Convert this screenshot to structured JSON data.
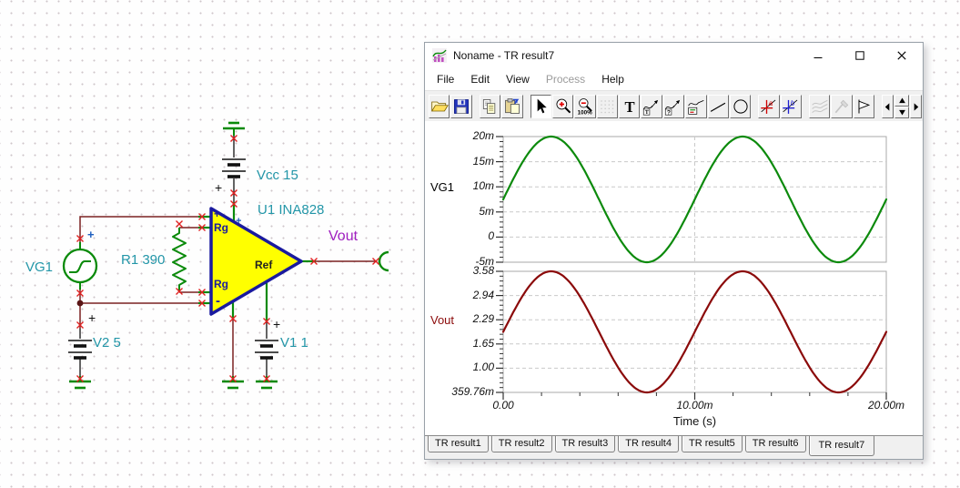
{
  "schematic": {
    "labels": {
      "vg1": "VG1",
      "r1": "R1 390",
      "v2": "V2 5",
      "vcc": "Vcc 15",
      "u1": "U1 INA828",
      "v1": "V1 1",
      "vout": "Vout"
    },
    "pins": {
      "plus": "+",
      "minus": "-",
      "rg": "Rg",
      "ref": "Ref"
    },
    "colors": {
      "label": "#2396a8",
      "vout_label": "#a020c0",
      "wire": "#7a2020",
      "component_green": "#0a8a0a",
      "opamp_fill": "#ffff00",
      "opamp_border": "#1a1a9e",
      "x_mark": "#e02020"
    }
  },
  "window": {
    "title": "Noname - TR result7",
    "controls": [
      "minimize",
      "maximize",
      "close"
    ],
    "menu": [
      {
        "label": "File"
      },
      {
        "label": "Edit"
      },
      {
        "label": "View"
      },
      {
        "label": "Process",
        "disabled": true
      },
      {
        "label": "Help"
      }
    ],
    "toolbar": [
      {
        "icon": "open"
      },
      {
        "icon": "save"
      },
      {
        "gap": true
      },
      {
        "icon": "copy"
      },
      {
        "icon": "paste"
      },
      {
        "gap": true
      },
      {
        "icon": "cursor-arrow",
        "pressed": true
      },
      {
        "icon": "zoom-in"
      },
      {
        "icon": "zoom-100"
      },
      {
        "icon": "grid",
        "disabled": true
      },
      {
        "icon": "text"
      },
      {
        "icon": "curve-label"
      },
      {
        "icon": "curve-query"
      },
      {
        "icon": "curve-legend"
      },
      {
        "icon": "line"
      },
      {
        "icon": "ellipse"
      },
      {
        "gap": true
      },
      {
        "icon": "cursor-a"
      },
      {
        "icon": "cursor-b"
      },
      {
        "gap": true
      },
      {
        "icon": "smooth",
        "disabled": true
      },
      {
        "icon": "picker",
        "disabled": true
      },
      {
        "icon": "flag"
      },
      {
        "gap": true
      },
      {
        "icon": "nav-left",
        "narrow": true
      },
      {
        "icon": "nav-spin",
        "spin": true
      },
      {
        "icon": "nav-right",
        "narrow": true
      }
    ]
  },
  "chart_data": [
    {
      "type": "line",
      "name": "VG1",
      "name_color": "#000000",
      "trace_color": "#0c8a0c",
      "y_tick_labels": [
        "20m",
        "15m",
        "10m",
        "5m",
        "0",
        "-5m"
      ],
      "y_min": -0.005,
      "y_max": 0.02,
      "x_min_s": 0,
      "x_max_s": 0.02,
      "grid": true,
      "signal": {
        "shape": "sine",
        "dc_offset": 0.0075,
        "amplitude": 0.0125,
        "frequency_hz": 100,
        "phase_deg": 0
      }
    },
    {
      "type": "line",
      "name": "Vout",
      "name_color": "#8b0a0a",
      "trace_color": "#8b0a0a",
      "y_tick_labels": [
        "3.58",
        "2.94",
        "2.29",
        "1.65",
        "1.00",
        "359.76m"
      ],
      "y_min": 0.35976,
      "y_max": 3.58,
      "x_min_s": 0,
      "x_max_s": 0.02,
      "grid": true,
      "signal": {
        "shape": "sine",
        "dc_offset": 1.96988,
        "amplitude": 1.61012,
        "frequency_hz": 100,
        "phase_deg": 0
      }
    }
  ],
  "x_axis": {
    "tick_labels": [
      "0.00",
      "10.00m",
      "20.00m"
    ],
    "title": "Time (s)"
  },
  "tabs": {
    "items": [
      "TR result1",
      "TR result2",
      "TR result3",
      "TR result4",
      "TR result5",
      "TR result6",
      "TR result7"
    ],
    "active": "TR result7"
  }
}
